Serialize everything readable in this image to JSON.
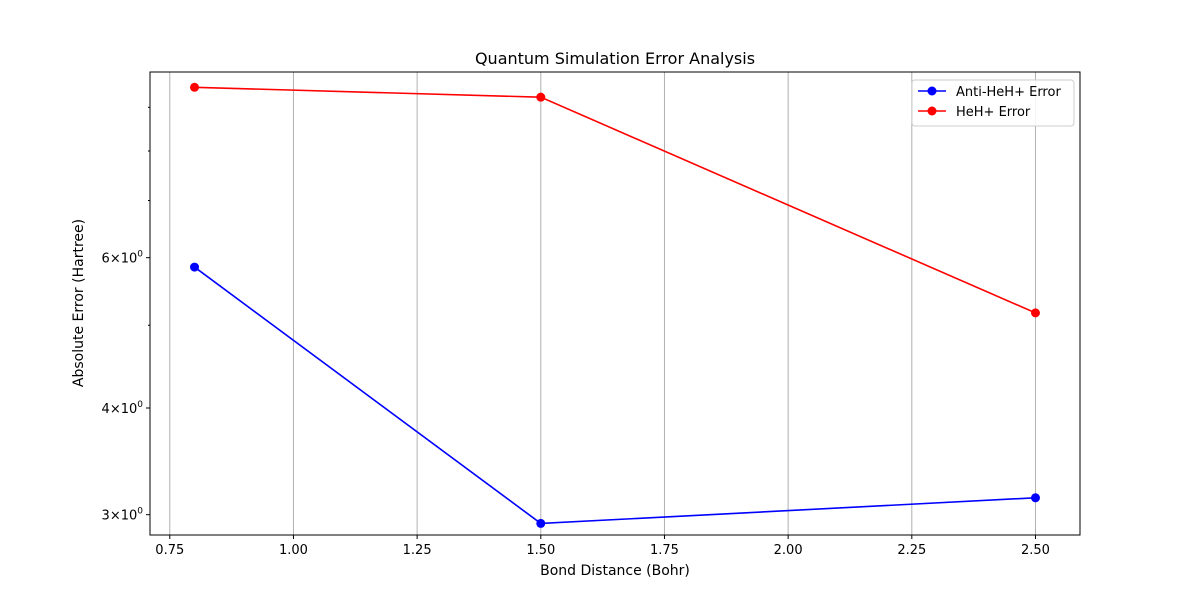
{
  "chart_data": {
    "type": "line",
    "title": "Quantum Simulation Error Analysis",
    "xlabel": "Bond Distance (Bohr)",
    "ylabel": "Absolute Error (Hartree)",
    "x_scale": "linear",
    "y_scale": "log",
    "xlim": [
      0.71,
      2.59
    ],
    "ylim": [
      2.84,
      9.9
    ],
    "x_ticks": [
      0.75,
      1.0,
      1.25,
      1.5,
      1.75,
      2.0,
      2.25,
      2.5
    ],
    "x_tick_labels": [
      "0.75",
      "1.00",
      "1.25",
      "1.50",
      "1.75",
      "2.00",
      "2.25",
      "2.50"
    ],
    "y_major_ticks": [
      3,
      4,
      6
    ],
    "y_minor_ticks": [
      5,
      7,
      8,
      9
    ],
    "grid": "x",
    "legend_position": "top-right",
    "x": [
      0.8,
      1.5,
      2.5
    ],
    "series": [
      {
        "name": "Anti-HeH+ Error",
        "color": "#0000ff",
        "values": [
          5.85,
          2.93,
          3.14
        ]
      },
      {
        "name": "HeH+ Error",
        "color": "#ff0000",
        "values": [
          9.5,
          9.25,
          5.17
        ]
      }
    ]
  }
}
